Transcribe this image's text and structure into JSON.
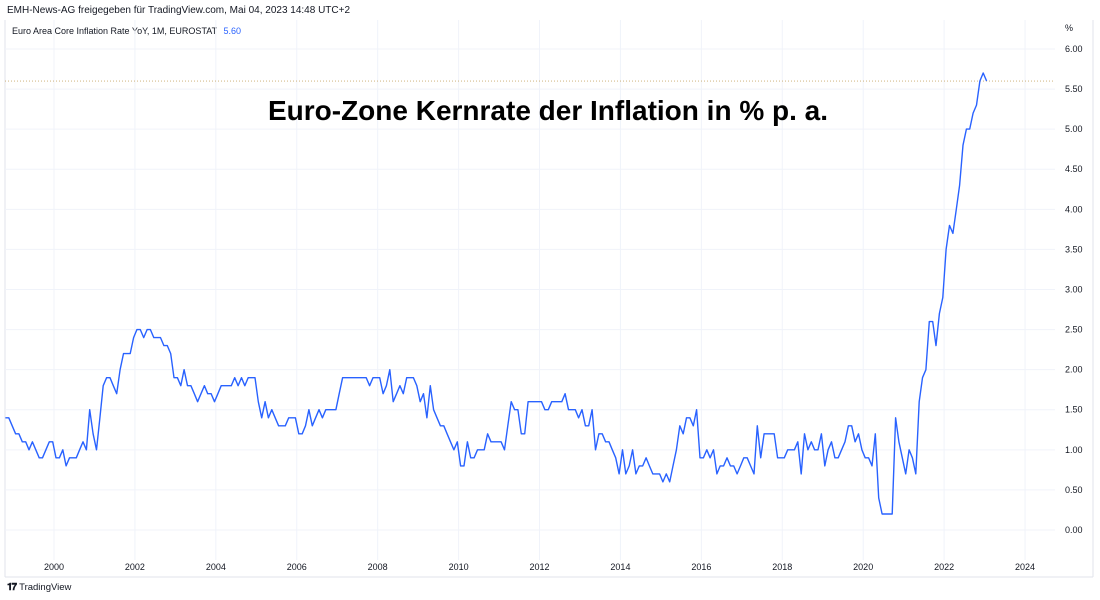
{
  "header": {
    "attribution": "EMH-News-AG freigegeben für TradingView.com, Mai 04, 2023 14:48 UTC+2"
  },
  "legend": {
    "series_name": "Euro Area Core Inflation Rate YoY, 1M, EUROSTAT",
    "last_value": "5.60"
  },
  "footer": {
    "brand": "TradingView",
    "logo_text": "17"
  },
  "colors": {
    "line": "#2962ff",
    "grid": "#f0f3fa",
    "last_value_line": "#c8a86b"
  },
  "chart_data": {
    "type": "line",
    "title": "Euro-Zone Kernrate der Inflation in % p. a.",
    "ylabel": "%",
    "xlabel": "",
    "ylim": [
      -0.2,
      6.2
    ],
    "yticks": [
      "0.00",
      "0.50",
      "1.00",
      "1.50",
      "2.00",
      "2.50",
      "3.00",
      "3.50",
      "4.00",
      "4.50",
      "5.00",
      "5.50",
      "6.00"
    ],
    "xticks": [
      "2000",
      "2002",
      "2004",
      "2006",
      "2008",
      "2010",
      "2012",
      "2014",
      "2016",
      "2018",
      "2020",
      "2022",
      "2024"
    ],
    "start": "1999-01",
    "frequency": "monthly",
    "last_value_line": 5.6,
    "grid": true,
    "series": [
      {
        "name": "Euro Area Core Inflation Rate YoY",
        "values": [
          1.4,
          1.4,
          1.3,
          1.2,
          1.2,
          1.1,
          1.1,
          1.0,
          1.1,
          1.0,
          0.9,
          0.9,
          1.0,
          1.1,
          1.1,
          0.9,
          0.9,
          1.0,
          0.8,
          0.9,
          0.9,
          0.9,
          1.0,
          1.1,
          1.0,
          1.5,
          1.2,
          1.0,
          1.4,
          1.8,
          1.9,
          1.9,
          1.8,
          1.7,
          2.0,
          2.2,
          2.2,
          2.2,
          2.4,
          2.5,
          2.5,
          2.4,
          2.5,
          2.5,
          2.4,
          2.4,
          2.4,
          2.3,
          2.3,
          2.2,
          1.9,
          1.9,
          1.8,
          2.0,
          1.8,
          1.8,
          1.7,
          1.6,
          1.7,
          1.8,
          1.7,
          1.7,
          1.6,
          1.7,
          1.8,
          1.8,
          1.8,
          1.8,
          1.9,
          1.8,
          1.9,
          1.8,
          1.9,
          1.9,
          1.9,
          1.6,
          1.4,
          1.6,
          1.4,
          1.5,
          1.4,
          1.3,
          1.3,
          1.3,
          1.4,
          1.4,
          1.4,
          1.2,
          1.2,
          1.3,
          1.5,
          1.3,
          1.4,
          1.5,
          1.4,
          1.5,
          1.5,
          1.5,
          1.5,
          1.7,
          1.9,
          1.9,
          1.9,
          1.9,
          1.9,
          1.9,
          1.9,
          1.9,
          1.8,
          1.9,
          1.9,
          1.9,
          1.7,
          1.8,
          2.0,
          1.6,
          1.7,
          1.8,
          1.7,
          1.9,
          1.9,
          1.9,
          1.8,
          1.6,
          1.7,
          1.4,
          1.8,
          1.5,
          1.4,
          1.3,
          1.3,
          1.2,
          1.1,
          1.0,
          1.1,
          0.8,
          0.8,
          1.1,
          0.9,
          0.9,
          1.0,
          1.0,
          1.0,
          1.2,
          1.1,
          1.1,
          1.1,
          1.1,
          1.0,
          1.3,
          1.6,
          1.5,
          1.5,
          1.2,
          1.2,
          1.6,
          1.6,
          1.6,
          1.6,
          1.6,
          1.5,
          1.5,
          1.6,
          1.6,
          1.6,
          1.6,
          1.7,
          1.5,
          1.5,
          1.5,
          1.4,
          1.5,
          1.3,
          1.3,
          1.5,
          1.0,
          1.2,
          1.2,
          1.1,
          1.1,
          1.0,
          0.9,
          0.7,
          1.0,
          0.7,
          0.8,
          1.0,
          0.7,
          0.8,
          0.8,
          0.9,
          0.8,
          0.7,
          0.7,
          0.7,
          0.6,
          0.7,
          0.6,
          0.8,
          1.0,
          1.3,
          1.2,
          1.4,
          1.4,
          1.3,
          1.5,
          0.9,
          0.9,
          1.0,
          0.9,
          1.0,
          0.7,
          0.8,
          0.8,
          0.9,
          0.8,
          0.8,
          0.7,
          0.8,
          0.9,
          0.9,
          0.8,
          0.7,
          1.3,
          0.9,
          1.2,
          1.2,
          1.2,
          1.2,
          0.9,
          0.9,
          0.9,
          1.0,
          1.0,
          1.0,
          1.1,
          0.7,
          1.2,
          1.0,
          1.1,
          1.0,
          1.0,
          1.2,
          0.8,
          1.0,
          1.1,
          0.9,
          0.9,
          1.0,
          1.1,
          1.3,
          1.3,
          1.1,
          1.2,
          1.0,
          0.9,
          0.9,
          0.8,
          1.2,
          0.4,
          0.2,
          0.2,
          0.2,
          0.2,
          1.4,
          1.1,
          0.9,
          0.7,
          1.0,
          0.9,
          0.7,
          1.6,
          1.9,
          2.0,
          2.6,
          2.6,
          2.3,
          2.7,
          2.9,
          3.5,
          3.8,
          3.7,
          4.0,
          4.3,
          4.8,
          5.0,
          5.0,
          5.2,
          5.3,
          5.6,
          5.7,
          5.6
        ]
      }
    ]
  }
}
